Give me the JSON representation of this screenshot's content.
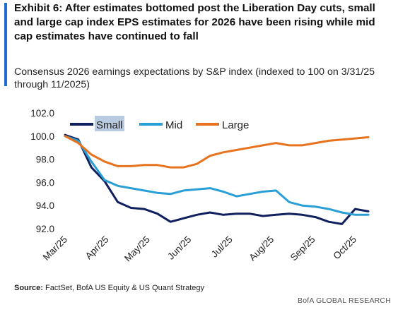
{
  "header": {
    "title": "Exhibit 6: After estimates bottomed post the Liberation Day cuts, small and large cap index EPS estimates for 2026 have been rising while mid cap estimates have continued to fall",
    "subtitle": "Consensus 2026 earnings expectations by S&P index (indexed to 100 on 3/31/25 through 11/2025)"
  },
  "footer": {
    "source_label": "Source:",
    "source_text": "FactSet, BofA US Equity & US Quant Strategy",
    "brand": "BofA GLOBAL RESEARCH"
  },
  "colors": {
    "accent": "#1e6fcf",
    "small": "#10205e",
    "mid": "#2a9fd6",
    "large": "#e8731e"
  },
  "chart_data": {
    "type": "line",
    "title": "",
    "xlabel": "",
    "ylabel": "",
    "ylim": [
      92.0,
      102.0
    ],
    "yticks": [
      "102.0",
      "100.0",
      "98.0",
      "96.0",
      "94.0",
      "92.0"
    ],
    "xticks": [
      "Mar/25",
      "Apr/25",
      "May/25",
      "Jun/25",
      "Jul/25",
      "Aug/25",
      "Sep/25",
      "Oct/25"
    ],
    "x": [
      "Mar/25",
      "Mar/25",
      "Apr/25",
      "Apr/25",
      "Apr/25",
      "May/25",
      "May/25",
      "May/25",
      "Jun/25",
      "Jun/25",
      "Jun/25",
      "Jul/25",
      "Jul/25",
      "Jul/25",
      "Aug/25",
      "Aug/25",
      "Aug/25",
      "Sep/25",
      "Sep/25",
      "Sep/25",
      "Oct/25",
      "Oct/25",
      "Oct/25",
      "Oct/25"
    ],
    "legend": {
      "placement": "top",
      "entries": [
        "Small",
        "Mid",
        "Large"
      ],
      "highlighted": "Small"
    },
    "grid": false,
    "series": [
      {
        "name": "Small",
        "color": "#10205e",
        "values": [
          100.1,
          99.7,
          97.3,
          96.1,
          94.3,
          93.8,
          93.7,
          93.3,
          92.6,
          92.9,
          93.2,
          93.4,
          93.2,
          93.3,
          93.3,
          93.1,
          93.2,
          93.3,
          93.2,
          93.0,
          92.6,
          92.4,
          93.7,
          93.5
        ]
      },
      {
        "name": "Mid",
        "color": "#2a9fd6",
        "values": [
          100.0,
          99.6,
          97.8,
          96.2,
          95.7,
          95.5,
          95.3,
          95.1,
          95.0,
          95.3,
          95.4,
          95.5,
          95.2,
          94.8,
          95.0,
          95.2,
          95.3,
          94.3,
          94.0,
          93.9,
          93.7,
          93.4,
          93.2,
          93.2
        ]
      },
      {
        "name": "Large",
        "color": "#e8731e",
        "values": [
          100.0,
          99.4,
          98.4,
          97.8,
          97.4,
          97.4,
          97.5,
          97.5,
          97.3,
          97.3,
          97.6,
          98.3,
          98.6,
          98.8,
          99.0,
          99.2,
          99.4,
          99.2,
          99.2,
          99.4,
          99.6,
          99.7,
          99.8,
          99.9
        ]
      }
    ]
  }
}
